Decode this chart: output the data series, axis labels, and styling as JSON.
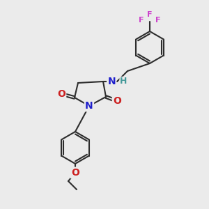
{
  "bg_color": "#ebebeb",
  "bond_color": "#2d2d2d",
  "bond_width": 1.5,
  "atom_colors": {
    "N": "#2020cc",
    "O": "#cc2020",
    "F": "#cc44cc",
    "H_on_N": "#449999",
    "C": "#2d2d2d"
  },
  "font_size_atom": 9,
  "font_size_small": 8
}
